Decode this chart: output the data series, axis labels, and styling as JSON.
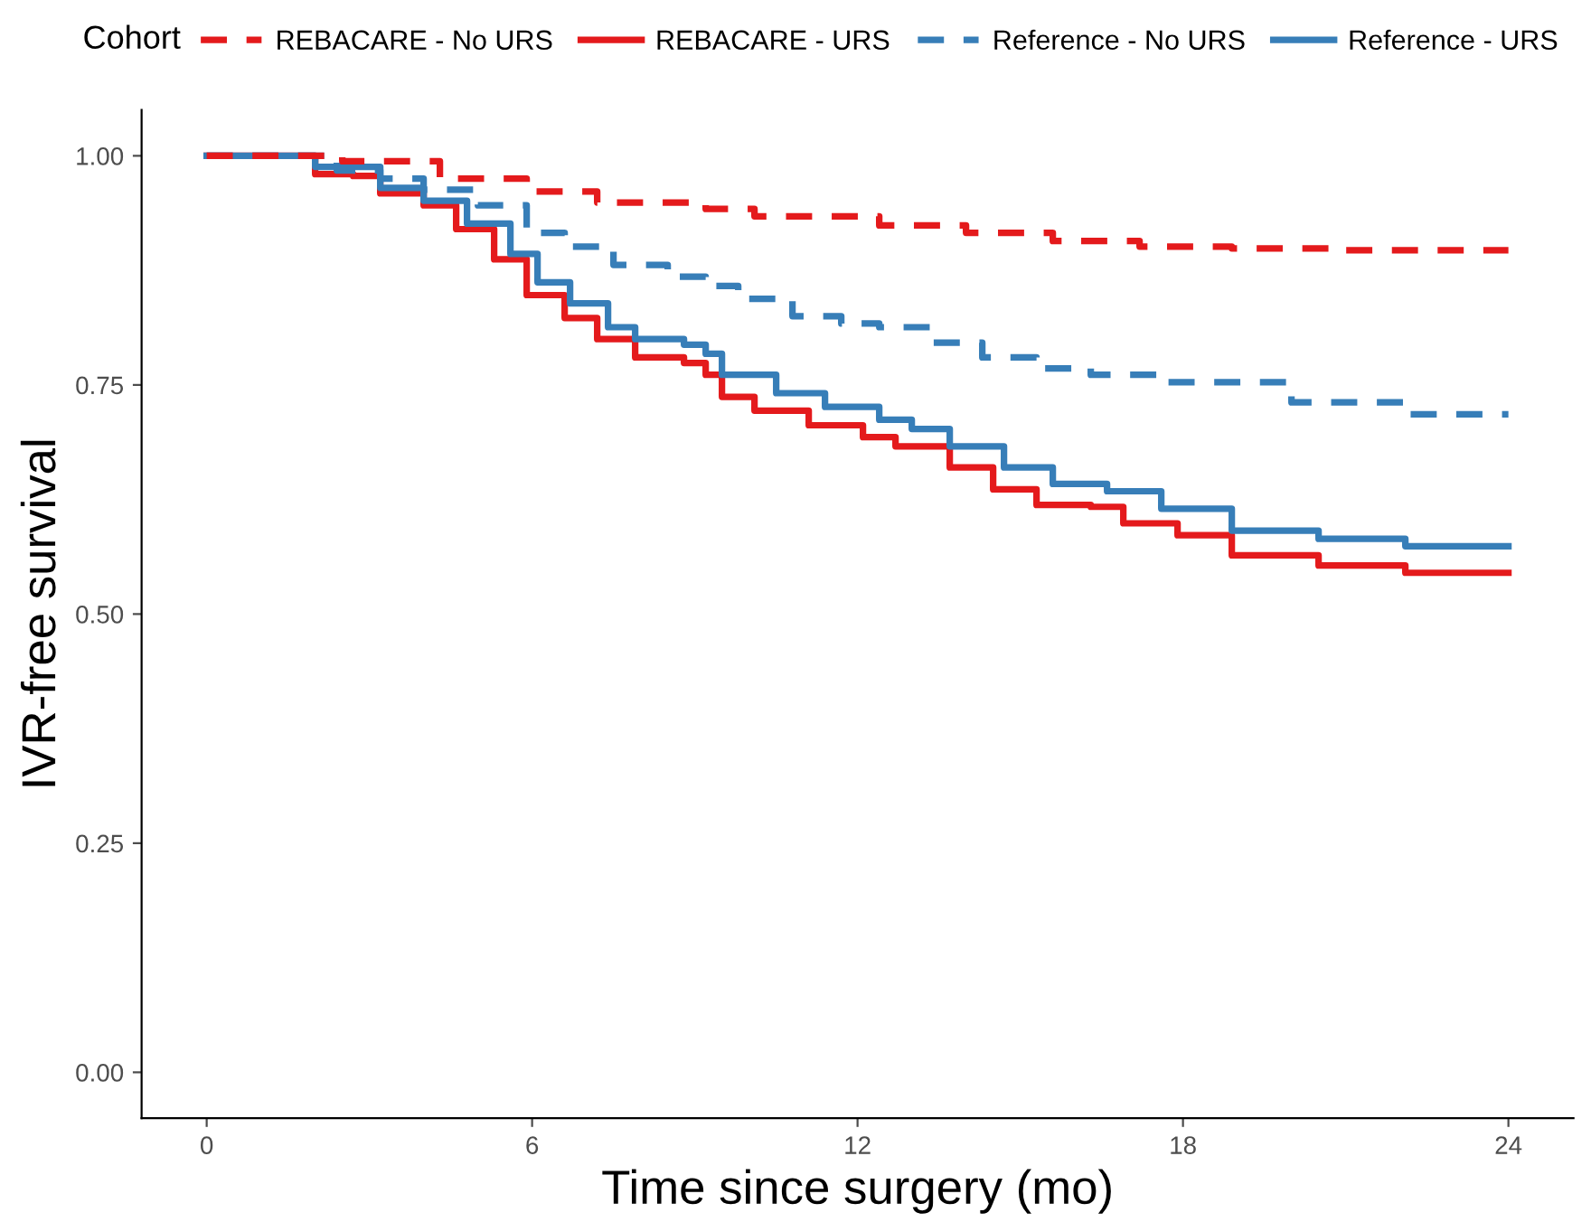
{
  "chart_data": {
    "type": "step",
    "xlabel": "Time since surgery (mo)",
    "ylabel": "IVR-free survival",
    "legend_title": "Cohort",
    "legend": "top",
    "grid": false,
    "xlim": [
      -1.2,
      25.2
    ],
    "ylim": [
      -0.05,
      1.05
    ],
    "xticks": [
      0,
      6,
      12,
      18,
      24
    ],
    "yticks": [
      {
        "value": 0,
        "label": "0.00"
      },
      {
        "value": 0.25,
        "label": "0.25"
      },
      {
        "value": 0.5,
        "label": "0.50"
      },
      {
        "value": 0.75,
        "label": "0.75"
      },
      {
        "value": 1,
        "label": "1.00"
      }
    ],
    "series": [
      {
        "name": "REBACARE - No URS",
        "color": "#e41a1c",
        "line_style": "dashed",
        "x": [
          0,
          2.5,
          4.3,
          5.9,
          7.2,
          9.2,
          10.1,
          12.4,
          14.0,
          15.6,
          17.2,
          18.9,
          20.8,
          24
        ],
        "values": [
          1.0,
          0.994,
          0.975,
          0.961,
          0.949,
          0.942,
          0.934,
          0.924,
          0.916,
          0.907,
          0.901,
          0.899,
          0.897,
          0.897
        ]
      },
      {
        "name": "REBACARE - URS",
        "color": "#e41a1c",
        "line_style": "solid",
        "x": [
          0,
          2.0,
          2.7,
          3.2,
          4.0,
          4.6,
          5.3,
          5.9,
          6.6,
          7.2,
          7.9,
          8.8,
          9.2,
          9.5,
          10.1,
          11.1,
          12.1,
          12.7,
          13.7,
          14.5,
          15.3,
          16.3,
          16.9,
          17.9,
          18.9,
          20.5,
          22.1,
          24
        ],
        "values": [
          1.0,
          0.98,
          0.978,
          0.959,
          0.946,
          0.92,
          0.887,
          0.848,
          0.823,
          0.8,
          0.78,
          0.774,
          0.761,
          0.737,
          0.722,
          0.706,
          0.693,
          0.683,
          0.66,
          0.636,
          0.619,
          0.617,
          0.599,
          0.586,
          0.564,
          0.553,
          0.545,
          0.545
        ]
      },
      {
        "name": "Reference - No URS",
        "color": "#377eb8",
        "line_style": "dashed",
        "x": [
          0,
          2.0,
          2.4,
          3.2,
          4.0,
          5.0,
          5.9,
          6.6,
          7.5,
          8.5,
          9.2,
          9.8,
          10.8,
          11.7,
          12.4,
          13.4,
          14.3,
          15.3,
          16.3,
          17.6,
          20.0,
          22.1,
          24
        ],
        "values": [
          1.0,
          1.0,
          0.984,
          0.975,
          0.963,
          0.946,
          0.916,
          0.901,
          0.881,
          0.868,
          0.858,
          0.844,
          0.825,
          0.817,
          0.813,
          0.796,
          0.78,
          0.768,
          0.761,
          0.753,
          0.731,
          0.718,
          0.718
        ]
      },
      {
        "name": "Reference - URS",
        "color": "#377eb8",
        "line_style": "solid",
        "x": [
          0,
          2.0,
          3.2,
          4.0,
          4.8,
          5.6,
          6.1,
          6.7,
          7.4,
          7.9,
          8.8,
          9.2,
          9.5,
          10.5,
          11.4,
          12.4,
          13.0,
          13.7,
          14.7,
          15.6,
          16.6,
          17.6,
          18.9,
          20.5,
          22.1,
          24
        ],
        "values": [
          1.0,
          0.988,
          0.965,
          0.951,
          0.926,
          0.893,
          0.862,
          0.839,
          0.813,
          0.8,
          0.794,
          0.784,
          0.761,
          0.741,
          0.726,
          0.712,
          0.702,
          0.683,
          0.66,
          0.642,
          0.634,
          0.615,
          0.591,
          0.582,
          0.574,
          0.574
        ]
      }
    ]
  }
}
